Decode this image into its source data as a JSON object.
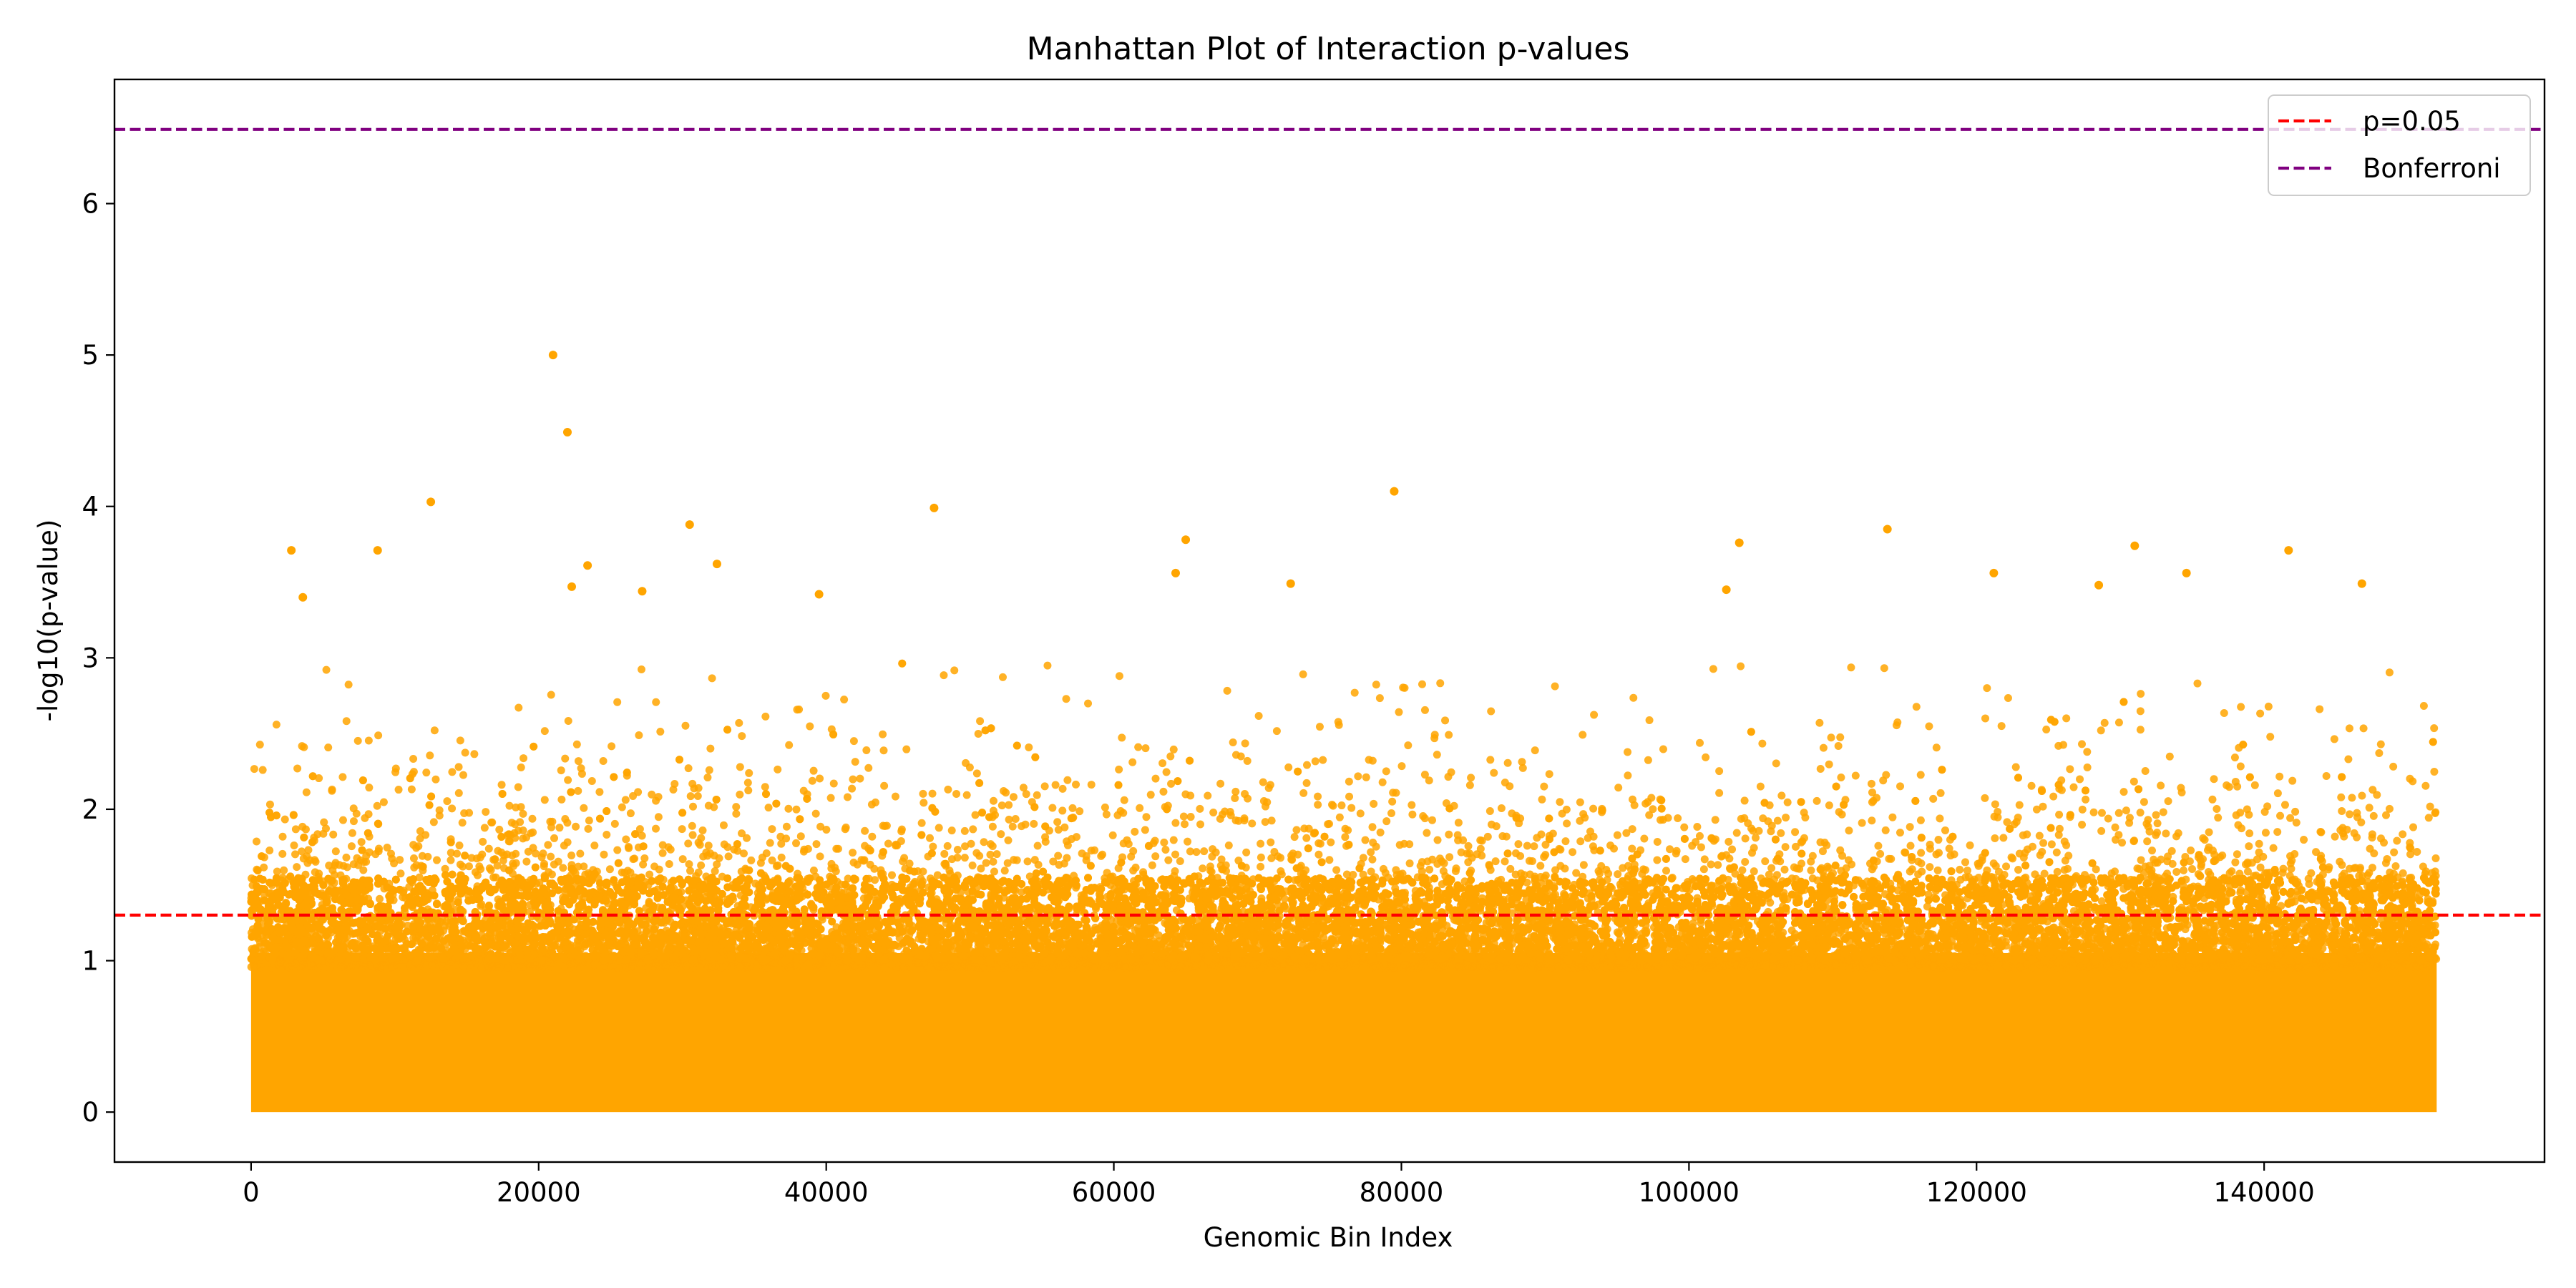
{
  "chart_data": {
    "type": "scatter",
    "title": "Manhattan Plot of Interaction p-values",
    "xlabel": "Genomic Bin Index",
    "ylabel": "-log10(p-value)",
    "xlim": [
      -9500,
      159500
    ],
    "ylim": [
      -0.33,
      6.82
    ],
    "x_ticks": [
      0,
      20000,
      40000,
      60000,
      80000,
      100000,
      120000,
      140000
    ],
    "x_tick_labels": [
      "0",
      "20000",
      "40000",
      "60000",
      "80000",
      "100000",
      "120000",
      "140000"
    ],
    "y_ticks": [
      0,
      1,
      2,
      3,
      4,
      5,
      6
    ],
    "y_tick_labels": [
      "0",
      "1",
      "2",
      "3",
      "4",
      "5",
      "6"
    ],
    "grid": false,
    "legend_position": "top-right",
    "point_color": "#ffa500",
    "n_bins": 152000,
    "dense_band": {
      "x_range": [
        0,
        152000
      ],
      "y_range": [
        0,
        1.05
      ]
    },
    "reference_lines": [
      {
        "name": "p=0.05",
        "y": 1.301,
        "color": "#ff0000",
        "style": "dashed"
      },
      {
        "name": "Bonferroni",
        "y": 6.49,
        "color": "#800080",
        "style": "dashed"
      }
    ],
    "legend": [
      {
        "label": "p=0.05",
        "color": "#ff0000"
      },
      {
        "label": "Bonferroni",
        "color": "#800080"
      }
    ],
    "notable_points": [
      {
        "x": 21000,
        "y": 5.0
      },
      {
        "x": 22000,
        "y": 4.49
      },
      {
        "x": 12500,
        "y": 4.03
      },
      {
        "x": 79500,
        "y": 4.1
      },
      {
        "x": 47500,
        "y": 3.99
      },
      {
        "x": 30500,
        "y": 3.88
      },
      {
        "x": 113800,
        "y": 3.85
      },
      {
        "x": 103500,
        "y": 3.76
      },
      {
        "x": 65000,
        "y": 3.78
      },
      {
        "x": 131000,
        "y": 3.74
      },
      {
        "x": 141700,
        "y": 3.71
      },
      {
        "x": 2800,
        "y": 3.71
      },
      {
        "x": 8800,
        "y": 3.71
      },
      {
        "x": 32400,
        "y": 3.62
      },
      {
        "x": 23400,
        "y": 3.61
      },
      {
        "x": 121200,
        "y": 3.56
      },
      {
        "x": 64300,
        "y": 3.56
      },
      {
        "x": 134600,
        "y": 3.56
      },
      {
        "x": 72300,
        "y": 3.49
      },
      {
        "x": 146800,
        "y": 3.49
      },
      {
        "x": 128500,
        "y": 3.48
      },
      {
        "x": 22300,
        "y": 3.47
      },
      {
        "x": 102600,
        "y": 3.45
      },
      {
        "x": 27200,
        "y": 3.44
      },
      {
        "x": 39500,
        "y": 3.42
      },
      {
        "x": 3600,
        "y": 3.4
      }
    ]
  }
}
